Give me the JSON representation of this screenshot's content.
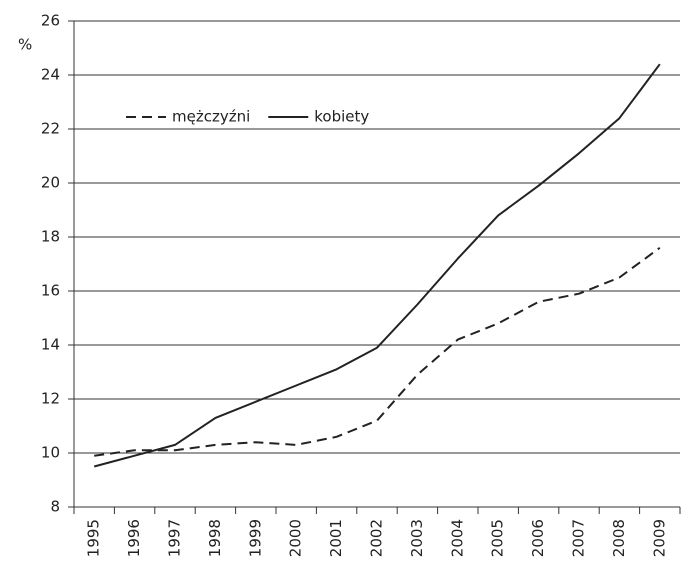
{
  "chart_data": {
    "type": "line",
    "y_label": "%",
    "categories": [
      "1995",
      "1996",
      "1997",
      "1998",
      "1999",
      "2000",
      "2001",
      "2002",
      "2003",
      "2004",
      "2005",
      "2006",
      "2007",
      "2008",
      "2009"
    ],
    "series": [
      {
        "name": "mężczyźni",
        "color": "#222222",
        "dash": true,
        "values": [
          9.9,
          10.1,
          10.1,
          10.3,
          10.4,
          10.3,
          10.6,
          11.2,
          12.9,
          14.2,
          14.8,
          15.6,
          15.9,
          16.5,
          17.6
        ]
      },
      {
        "name": "kobiety",
        "color": "#222222",
        "dash": false,
        "values": [
          9.5,
          9.9,
          10.3,
          11.3,
          11.9,
          12.5,
          13.1,
          13.9,
          15.5,
          17.2,
          18.8,
          19.9,
          21.1,
          22.4,
          24.4
        ]
      }
    ],
    "ylim": [
      8,
      26
    ],
    "yticks": [
      8,
      10,
      12,
      14,
      16,
      18,
      20,
      22,
      24,
      26
    ],
    "grid": true,
    "legend": "upper left"
  }
}
